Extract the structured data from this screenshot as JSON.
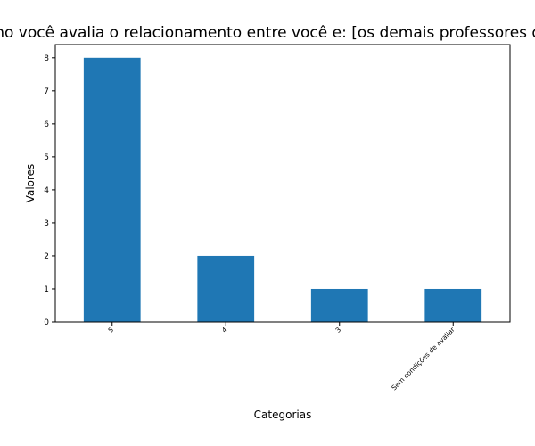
{
  "chart_data": {
    "type": "bar",
    "title": "Como você avalia o relacionamento entre você e: [os demais professores do p",
    "xlabel": "Categorias",
    "ylabel": "Valores",
    "categories": [
      "5",
      "4",
      "3",
      "Sem condições de avaliar"
    ],
    "values": [
      8,
      2,
      1,
      1
    ],
    "ylim": [
      0,
      8.4
    ],
    "yticks": [
      0,
      1,
      2,
      3,
      4,
      5,
      6,
      7,
      8
    ],
    "bar_color": "#1f77b4",
    "grid": false,
    "legend": false
  }
}
